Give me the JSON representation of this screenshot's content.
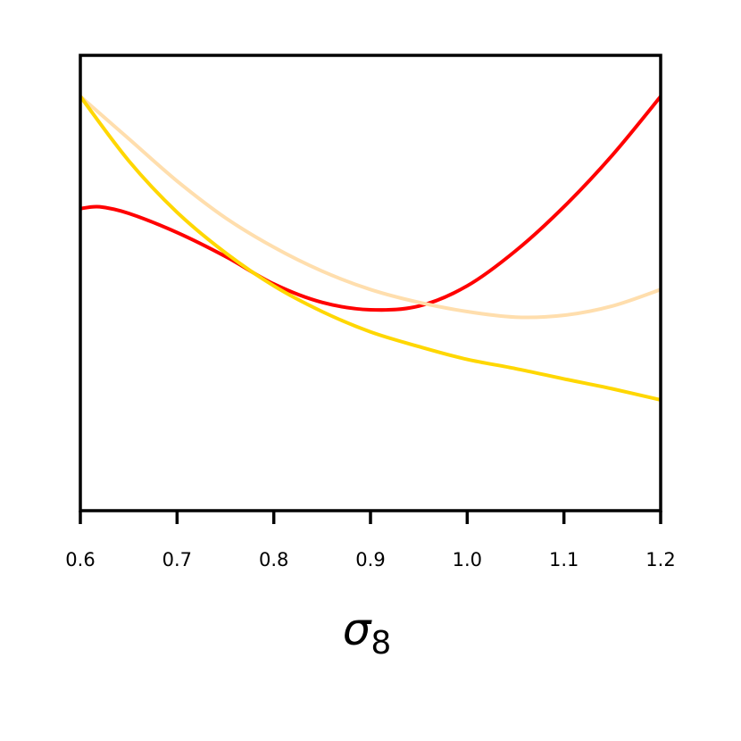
{
  "chart_data": {
    "type": "line",
    "title": "",
    "xlabel": "σ",
    "xlabel_subscript": "8",
    "ylabel": "",
    "xlim": [
      0.6,
      1.2
    ],
    "ylim": [
      0,
      1
    ],
    "x_ticks": [
      0.6,
      0.7,
      0.8,
      0.9,
      1.0,
      1.1,
      1.2
    ],
    "x_tick_labels": [
      "0.6",
      "0.7",
      "0.8",
      "0.9",
      "1.0",
      "1.1",
      "1.2"
    ],
    "y_ticks_visible": false,
    "grid": false,
    "series": [
      {
        "color": "#ff0000",
        "x": [
          0.6,
          0.62,
          0.65,
          0.7,
          0.75,
          0.8,
          0.85,
          0.9,
          0.95,
          1.0,
          1.05,
          1.1,
          1.15,
          1.2
        ],
        "y": [
          0.695,
          0.7,
          0.682,
          0.63,
          0.565,
          0.49,
          0.44,
          0.42,
          0.43,
          0.485,
          0.58,
          0.7,
          0.84,
          1.0
        ]
      },
      {
        "color": "#ffdead",
        "x": [
          0.6,
          0.65,
          0.7,
          0.75,
          0.8,
          0.85,
          0.9,
          0.95,
          1.0,
          1.05,
          1.1,
          1.15,
          1.2
        ],
        "y": [
          1.0,
          0.885,
          0.77,
          0.67,
          0.59,
          0.525,
          0.475,
          0.44,
          0.415,
          0.4,
          0.405,
          0.43,
          0.475
        ]
      },
      {
        "color": "#ffd700",
        "x": [
          0.6,
          0.65,
          0.7,
          0.75,
          0.8,
          0.85,
          0.9,
          0.95,
          1.0,
          1.05,
          1.1,
          1.15,
          1.2
        ],
        "y": [
          1.0,
          0.825,
          0.685,
          0.575,
          0.485,
          0.415,
          0.36,
          0.32,
          0.285,
          0.26,
          0.232,
          0.205,
          0.175
        ]
      }
    ]
  }
}
